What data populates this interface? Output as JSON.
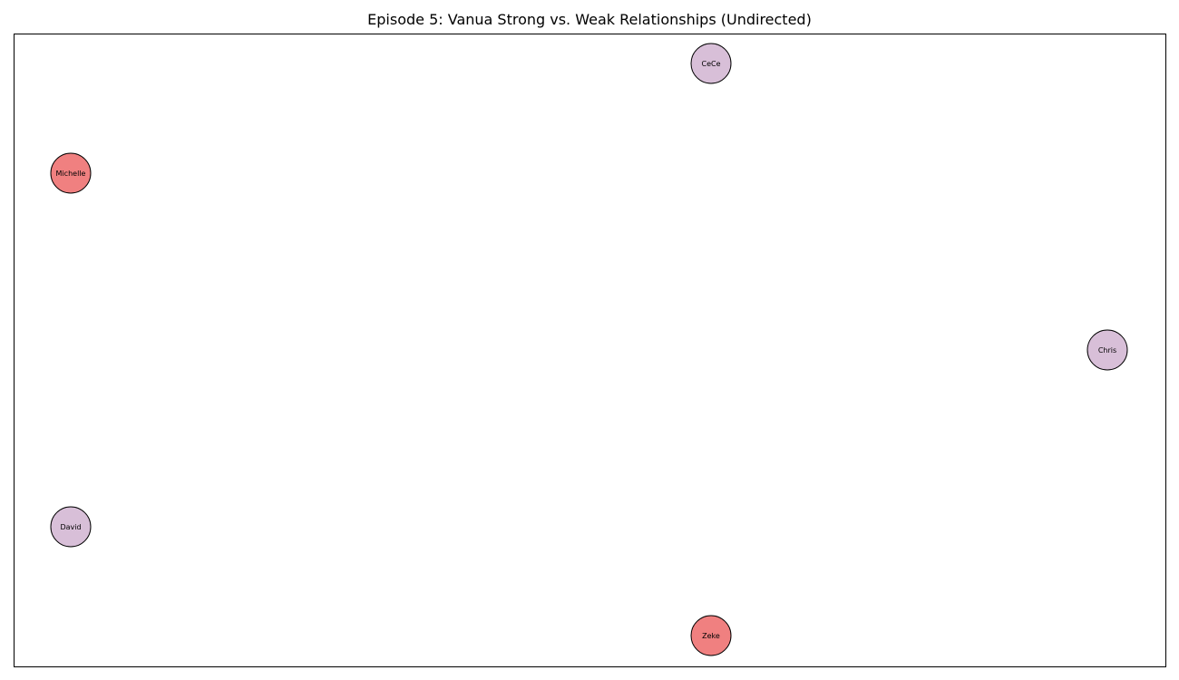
{
  "title": "Episode 5: Vanua Strong vs. Weak Relationships (Undirected)",
  "colors": {
    "weak_node": "#d8bfd8",
    "strong_node": "#f08080",
    "node_stroke": "#000000"
  },
  "nodes": [
    {
      "id": "cece",
      "label": "CeCe",
      "group": "weak"
    },
    {
      "id": "michelle",
      "label": "Michelle",
      "group": "strong"
    },
    {
      "id": "chris",
      "label": "Chris",
      "group": "weak"
    },
    {
      "id": "david",
      "label": "David",
      "group": "weak"
    },
    {
      "id": "zeke",
      "label": "Zeke",
      "group": "strong"
    }
  ],
  "edges": []
}
